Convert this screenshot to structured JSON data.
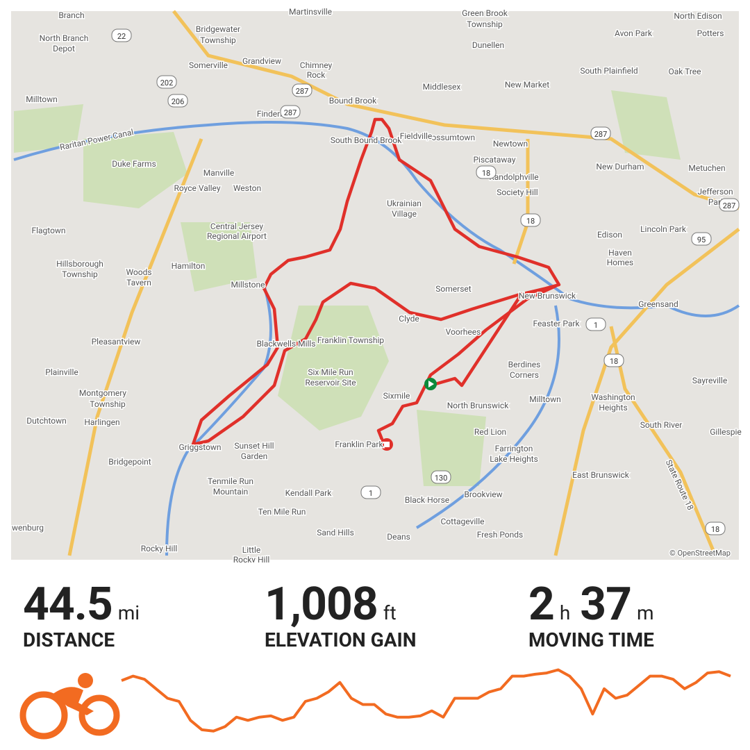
{
  "map": {
    "labels": [
      "Branch",
      "North Branch",
      "Depot",
      "Martinsville",
      "Bridgewater",
      "Township",
      "Green Brook",
      "Township",
      "North Edison",
      "Avon Park",
      "Potters",
      "Grandview",
      "Chimney",
      "Rock",
      "Dunellen",
      "South Plainfield",
      "Oak Tree",
      "Somerville",
      "Milltown",
      "Bound Brook",
      "Middlesex",
      "New Market",
      "Finderne",
      "Possumtown",
      "South Bound Brook",
      "Newtown",
      "Piscataway",
      "Fieldville",
      "Duke Farms",
      "New Durham",
      "Metuchen",
      "Manville",
      "Randolphville",
      "Royce Valley",
      "Weston",
      "Society Hill",
      "Jefferson",
      "Park",
      "Ukrainian",
      "Village",
      "Flagtown",
      "Central Jersey",
      "Regional Airport",
      "Lincoln Park",
      "Edison",
      "Haven",
      "Homes",
      "Hillsborough",
      "Township",
      "Woods",
      "Tavern",
      "Hamilton",
      "Millstone",
      "Somerset",
      "New Brunswick",
      "Greensand",
      "Clyde",
      "Feaster Park",
      "Voorhees",
      "Pleasantview",
      "Franklin Township",
      "Blackwells Mills",
      "Six Mile Run",
      "Reservoir Site",
      "Plainville",
      "Berdines",
      "Corners",
      "Sayreville",
      "Sixmile",
      "Montgomery",
      "Township",
      "Washington",
      "Heights",
      "Milltown",
      "North Brunswick",
      "Dutchtown",
      "Harlingen",
      "South River",
      "Gillespie",
      "Griggstown",
      "Sunset Hill",
      "Garden",
      "Franklin Park",
      "Red Lion",
      "Farrington",
      "Lake Heights",
      "Bridgepoint",
      "East Brunswick",
      "Tenmile Run",
      "Mountain",
      "Kendall Park",
      "Brookview",
      "Black Horse",
      "Ten Mile Run",
      "Cottageville",
      "Sand Hills",
      "Fresh Ponds",
      "Deans",
      "Rocky Hill",
      "Little",
      "Rocky Hill",
      "wenburg"
    ],
    "canal": "Raritan Power Canal",
    "state_route": "State Route 18",
    "attribution": "© OpenStreetMap",
    "shields": [
      "22",
      "202",
      "206",
      "287",
      "287",
      "287",
      "287",
      "18",
      "18",
      "95",
      "1",
      "18",
      "130",
      "1",
      "18"
    ]
  },
  "stats": [
    {
      "value": "44.5",
      "unit": "mi",
      "label": "DISTANCE"
    },
    {
      "value": "1,008",
      "unit": "ft",
      "label": "ELEVATION GAIN"
    },
    {
      "hours": "2",
      "hours_unit": "h",
      "minutes": "37",
      "minutes_unit": "m",
      "label": "MOVING TIME"
    }
  ],
  "elevation_profile": {
    "type": "line",
    "color": "#f26b21",
    "ylim": [
      0,
      110
    ],
    "values": [
      88,
      95,
      90,
      75,
      60,
      55,
      25,
      10,
      8,
      15,
      30,
      25,
      30,
      32,
      25,
      30,
      55,
      60,
      70,
      85,
      60,
      50,
      50,
      35,
      30,
      30,
      32,
      40,
      30,
      60,
      60,
      60,
      70,
      75,
      95,
      95,
      98,
      100,
      105,
      95,
      75,
      35,
      75,
      60,
      65,
      80,
      95,
      95,
      90,
      75,
      85,
      100,
      102,
      95
    ]
  }
}
